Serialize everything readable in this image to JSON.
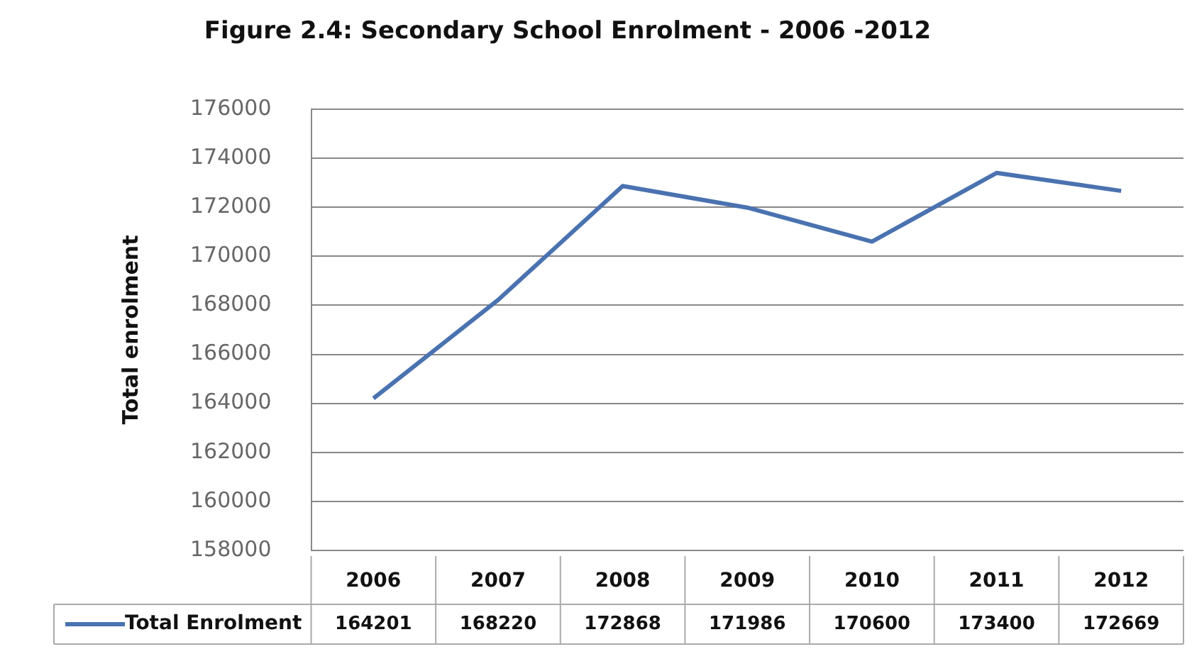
{
  "chart_data": {
    "type": "line",
    "title": "Figure 2.4: Secondary School Enrolment - 2006 -2012",
    "ylabel": "Total enrolment",
    "categories": [
      "2006",
      "2007",
      "2008",
      "2009",
      "2010",
      "2011",
      "2012"
    ],
    "series": [
      {
        "name": "Total Enrolment",
        "color": "#4a72b0",
        "values": [
          164201,
          168220,
          172868,
          171986,
          170600,
          173400,
          172669
        ]
      }
    ],
    "ylim": [
      158000,
      176000
    ],
    "yticks": [
      158000,
      160000,
      162000,
      164000,
      166000,
      168000,
      170000,
      172000,
      174000,
      176000
    ],
    "grid": "y",
    "legend": "bottom",
    "data_labels": true,
    "marker": "none"
  }
}
